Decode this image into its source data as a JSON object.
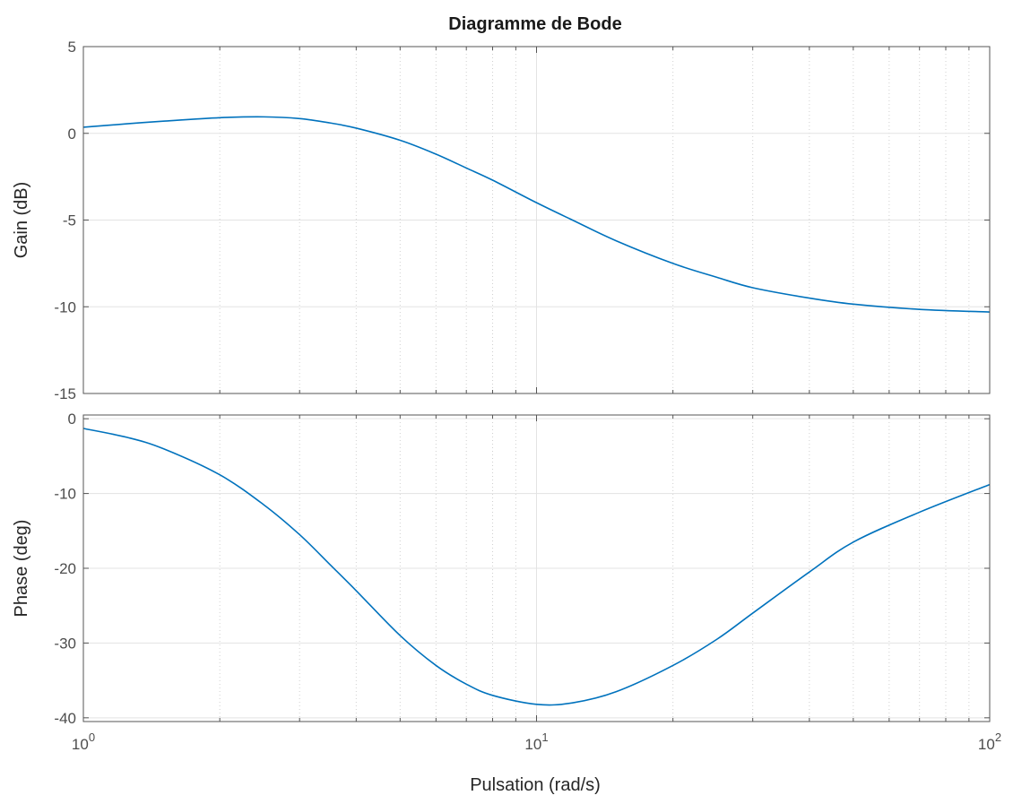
{
  "chart_data": [
    {
      "type": "line",
      "title": "Diagramme de Bode",
      "xlabel": "",
      "ylabel": "Gain (dB)",
      "xscale": "log",
      "xlim": [
        1,
        100
      ],
      "ylim": [
        -15,
        5
      ],
      "yticks": [
        5,
        0,
        -5,
        -10,
        -15
      ],
      "xtick_labels": [],
      "grid": true,
      "color": "#0072bd",
      "series": [
        {
          "x": [
            1,
            1.25,
            1.5,
            2,
            2.5,
            3,
            3.5,
            4,
            5,
            6,
            7,
            8,
            10,
            12,
            15,
            20,
            25,
            30,
            40,
            50,
            70,
            100
          ],
          "y": [
            0.35,
            0.55,
            0.7,
            0.9,
            0.95,
            0.85,
            0.6,
            0.3,
            -0.4,
            -1.2,
            -2.0,
            -2.7,
            -4.0,
            -5.0,
            -6.2,
            -7.5,
            -8.3,
            -8.9,
            -9.5,
            -9.85,
            -10.15,
            -10.3
          ]
        }
      ]
    },
    {
      "type": "line",
      "xlabel": "Pulsation  (rad/s)",
      "ylabel": "Phase (deg)",
      "xscale": "log",
      "xlim": [
        1,
        100
      ],
      "ylim": [
        -40.5,
        0.5
      ],
      "yticks": [
        0,
        -10,
        -20,
        -30,
        -40
      ],
      "xtick_labels": [
        {
          "base": "10",
          "exp": "0"
        },
        {
          "base": "10",
          "exp": "1"
        },
        {
          "base": "10",
          "exp": "2"
        }
      ],
      "grid": true,
      "color": "#0072bd",
      "series": [
        {
          "x": [
            1,
            1.25,
            1.5,
            2,
            2.5,
            3,
            3.5,
            4,
            5,
            6,
            7,
            8,
            10,
            12,
            15,
            20,
            25,
            30,
            40,
            50,
            70,
            100
          ],
          "y": [
            -1.3,
            -2.5,
            -4.0,
            -7.5,
            -11.5,
            -15.5,
            -19.5,
            -23.0,
            -29.0,
            -33.0,
            -35.5,
            -37.0,
            -38.2,
            -38.0,
            -36.5,
            -33.0,
            -29.5,
            -26.0,
            -20.5,
            -16.5,
            -12.5,
            -8.8
          ]
        }
      ]
    }
  ]
}
